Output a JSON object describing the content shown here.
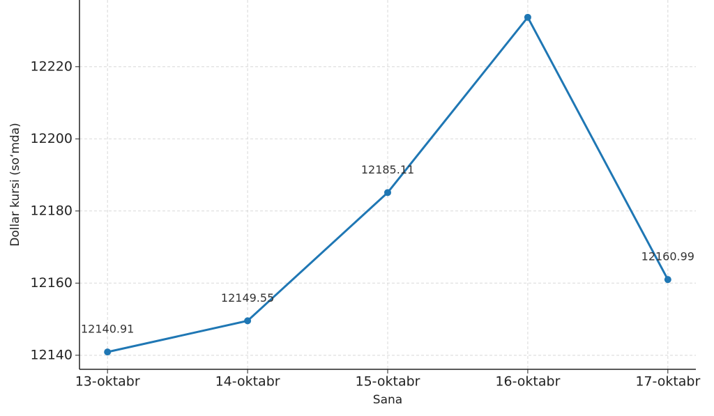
{
  "chart_data": {
    "type": "line",
    "x_label": "Sana",
    "y_label": "Dollar kursi (so‘mda)",
    "categories": [
      "13-oktabr",
      "14-oktabr",
      "15-oktabr",
      "16-oktabr",
      "17-oktabr"
    ],
    "series": [
      {
        "name": "Dollar kursi",
        "color": "#1f77b4",
        "values": [
          12140.91,
          12149.55,
          12185.11,
          12233.7,
          12160.99
        ]
      }
    ],
    "ylim": [
      12136.1,
      12238.5
    ],
    "yticks": [
      12140,
      12160,
      12180,
      12200,
      12220
    ],
    "grid": true
  }
}
